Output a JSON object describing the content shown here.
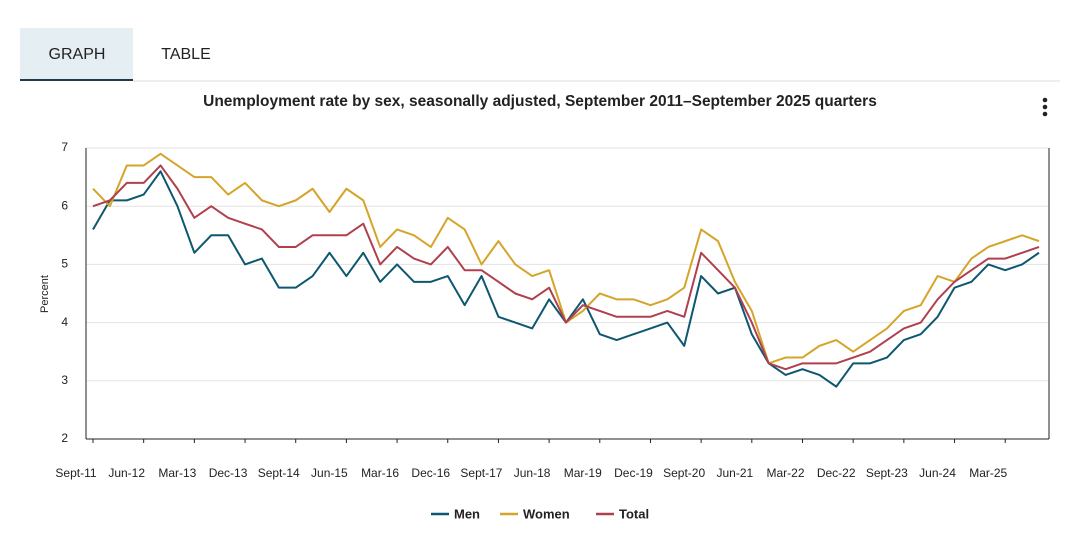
{
  "tabs": [
    "GRAPH",
    "TABLE"
  ],
  "chart_data": {
    "type": "line",
    "title": "Unemployment rate by sex, seasonally adjusted, September 2011–September 2025 quarters",
    "y_label": "Percent",
    "categories": [
      "Sept-11",
      null,
      null,
      "Jun-12",
      null,
      null,
      "Mar-13",
      null,
      null,
      "Dec-13",
      null,
      null,
      "Sept-14",
      null,
      null,
      "Jun-15",
      null,
      null,
      "Mar-16",
      null,
      null,
      "Dec-16",
      null,
      null,
      "Sept-17",
      null,
      null,
      "Jun-18",
      null,
      null,
      "Mar-19",
      null,
      null,
      "Dec-19",
      null,
      null,
      "Sept-20",
      null,
      null,
      "Jun-21",
      null,
      null,
      "Mar-22",
      null,
      null,
      "Dec-22",
      null,
      null,
      "Sept-23",
      null,
      null,
      "Jun-24",
      null,
      null,
      "Mar-25",
      null,
      null
    ],
    "ylim": [
      2,
      7
    ],
    "yticks": [
      2,
      3,
      4,
      5,
      6,
      7
    ],
    "grid": true,
    "legend": "bottom",
    "series": [
      {
        "name": "Men",
        "color": "#0e5770",
        "values": [
          5.6,
          6.1,
          6.1,
          6.2,
          6.6,
          6.0,
          5.2,
          5.5,
          5.5,
          5.0,
          5.1,
          4.6,
          4.6,
          4.8,
          5.2,
          4.8,
          5.2,
          4.7,
          5.0,
          4.7,
          4.7,
          4.8,
          4.3,
          4.8,
          4.1,
          4.0,
          3.9,
          4.4,
          4.0,
          4.4,
          3.8,
          3.7,
          3.8,
          3.9,
          4.0,
          3.6,
          4.8,
          4.5,
          4.6,
          3.8,
          3.3,
          3.1,
          3.2,
          3.1,
          2.9,
          3.3,
          3.3,
          3.4,
          3.7,
          3.8,
          4.1,
          4.6,
          4.7,
          5.0,
          4.9,
          5.0,
          5.2
        ]
      },
      {
        "name": "Women",
        "color": "#d4a52a",
        "values": [
          6.3,
          6.0,
          6.7,
          6.7,
          6.9,
          6.7,
          6.5,
          6.5,
          6.2,
          6.4,
          6.1,
          6.0,
          6.1,
          6.3,
          5.9,
          6.3,
          6.1,
          5.3,
          5.6,
          5.5,
          5.3,
          5.8,
          5.6,
          5.0,
          5.4,
          5.0,
          4.8,
          4.9,
          4.0,
          4.2,
          4.5,
          4.4,
          4.4,
          4.3,
          4.4,
          4.6,
          5.6,
          5.4,
          4.7,
          4.2,
          3.3,
          3.4,
          3.4,
          3.6,
          3.7,
          3.5,
          3.7,
          3.9,
          4.2,
          4.3,
          4.8,
          4.7,
          5.1,
          5.3,
          5.4,
          5.5,
          5.4
        ]
      },
      {
        "name": "Total",
        "color": "#b0404e",
        "values": [
          6.0,
          6.1,
          6.4,
          6.4,
          6.7,
          6.3,
          5.8,
          6.0,
          5.8,
          5.7,
          5.6,
          5.3,
          5.3,
          5.5,
          5.5,
          5.5,
          5.7,
          5.0,
          5.3,
          5.1,
          5.0,
          5.3,
          4.9,
          4.9,
          4.7,
          4.5,
          4.4,
          4.6,
          4.0,
          4.3,
          4.2,
          4.1,
          4.1,
          4.1,
          4.2,
          4.1,
          5.2,
          4.9,
          4.6,
          4.0,
          3.3,
          3.2,
          3.3,
          3.3,
          3.3,
          3.4,
          3.5,
          3.7,
          3.9,
          4.0,
          4.4,
          4.7,
          4.9,
          5.1,
          5.1,
          5.2,
          5.3
        ]
      }
    ]
  }
}
